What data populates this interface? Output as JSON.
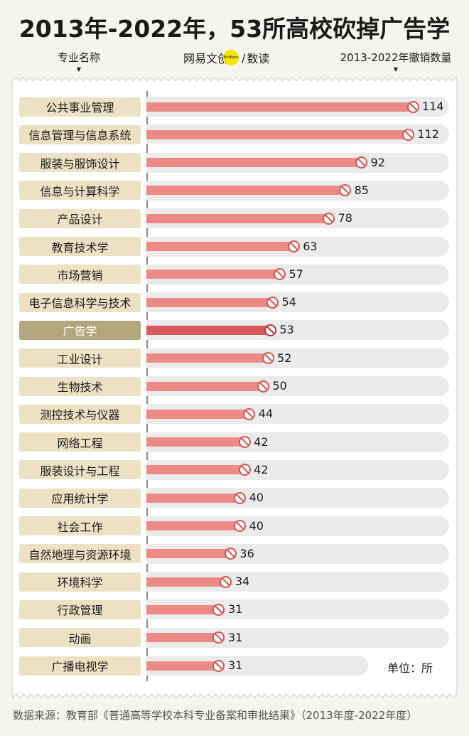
{
  "title": "2013年-2022年，53所高校砍掉广告学",
  "header": {
    "left": "专业名称",
    "brand_text": "网易文创",
    "brand_badge": "NetEase",
    "brand_sep": "/",
    "brand_sub": "数读",
    "right": "2013-2022年撤销数量",
    "arrow": "▼"
  },
  "unit_note": "单位：所",
  "source": "数据来源：教育部《普通高等学校本科专业备案和审批结果》（2013年度-2022年度）",
  "colors": {
    "bar": "#ec8a86",
    "bar_highlight": "#d85a5e",
    "label_bg": "#ece1c2",
    "label_bg_highlight": "#b3a67d",
    "brand_dot": "#f5e400"
  },
  "chart_data": {
    "type": "bar",
    "orientation": "horizontal",
    "title": "2013年-2022年，53所高校砍掉广告学",
    "xlabel": "2013-2022年撤销数量",
    "ylabel": "专业名称",
    "unit": "所",
    "highlight": "广告学",
    "categories": [
      "公共事业管理",
      "信息管理与信息系统",
      "服装与服饰设计",
      "信息与计算科学",
      "产品设计",
      "教育技术学",
      "市场营销",
      "电子信息科学与技术",
      "广告学",
      "工业设计",
      "生物技术",
      "测控技术与仪器",
      "网络工程",
      "服装设计与工程",
      "应用统计学",
      "社会工作",
      "自然地理与资源环境",
      "环境科学",
      "行政管理",
      "动画",
      "广播电视学"
    ],
    "values": [
      114,
      112,
      92,
      85,
      78,
      63,
      57,
      54,
      53,
      52,
      50,
      44,
      42,
      42,
      40,
      40,
      36,
      34,
      31,
      31,
      31
    ],
    "xlim": [
      0,
      114
    ]
  }
}
